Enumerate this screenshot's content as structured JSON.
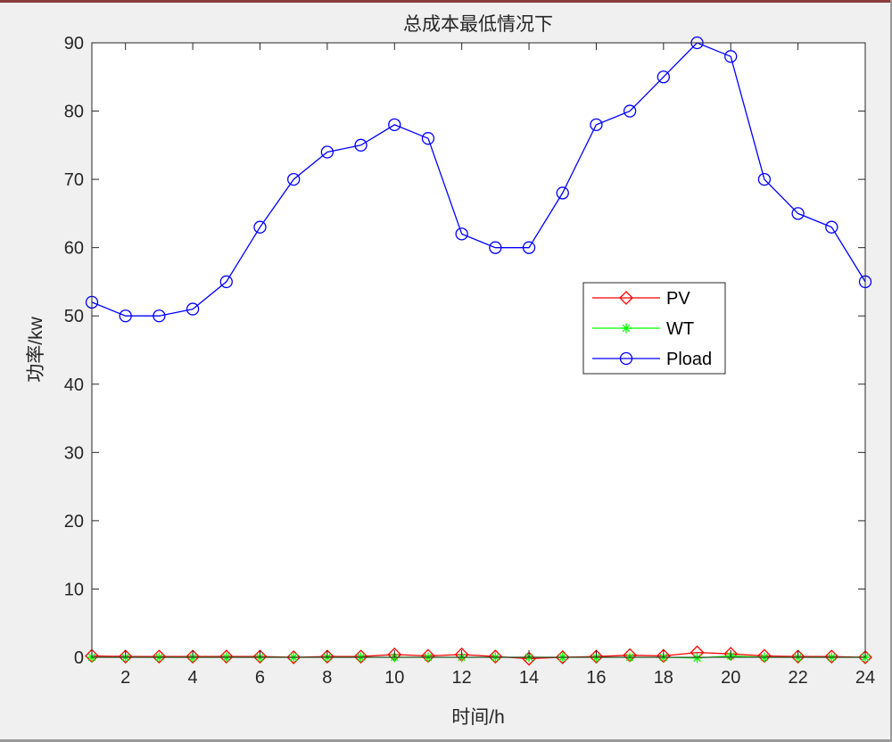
{
  "chart_data": {
    "type": "line",
    "title": "总成本最低情况下",
    "xlabel": "时间/h",
    "ylabel": "功率/kw",
    "xlim": [
      1,
      24
    ],
    "ylim": [
      0,
      90
    ],
    "xticks": [
      2,
      4,
      6,
      8,
      10,
      12,
      14,
      16,
      18,
      20,
      22,
      24
    ],
    "yticks": [
      0,
      10,
      20,
      30,
      40,
      50,
      60,
      70,
      80,
      90
    ],
    "grid": false,
    "legend_position": "center-right",
    "x": [
      1,
      2,
      3,
      4,
      5,
      6,
      7,
      8,
      9,
      10,
      11,
      12,
      13,
      14,
      15,
      16,
      17,
      18,
      19,
      20,
      21,
      22,
      23,
      24
    ],
    "series": [
      {
        "name": "PV",
        "color": "#ff0000",
        "marker": "diamond",
        "values": [
          0.2,
          0.1,
          0.1,
          0.1,
          0.1,
          0.1,
          0,
          0.1,
          0.1,
          0.4,
          0.2,
          0.4,
          0.1,
          -0.2,
          0,
          0.1,
          0.3,
          0.2,
          0.7,
          0.5,
          0.2,
          0.1,
          0.1,
          0
        ]
      },
      {
        "name": "WT",
        "color": "#00ff00",
        "marker": "asterisk",
        "values": [
          0,
          0,
          0,
          0,
          0,
          0,
          0,
          0,
          0,
          0,
          0,
          0,
          0,
          0,
          0,
          0,
          0,
          0,
          -0.1,
          0.2,
          0,
          0,
          0,
          0
        ]
      },
      {
        "name": "Pload",
        "color": "#0000ff",
        "marker": "circle",
        "values": [
          52,
          50,
          50,
          51,
          55,
          63,
          70,
          74,
          75,
          78,
          76,
          62,
          60,
          60,
          68,
          78,
          80,
          85,
          90,
          88,
          70,
          65,
          63,
          55
        ]
      }
    ]
  }
}
